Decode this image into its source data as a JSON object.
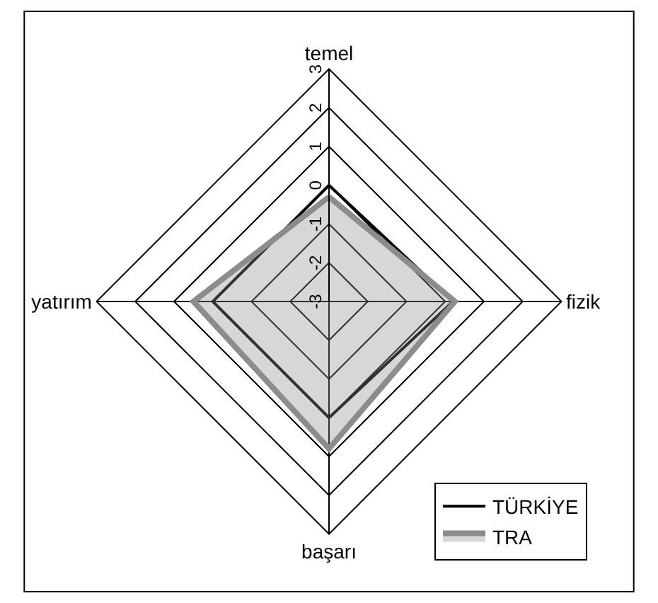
{
  "chart_data": {
    "type": "radar",
    "categories": [
      "temel",
      "fizik",
      "başarı",
      "yatırım"
    ],
    "series": [
      {
        "name": "TÜRKİYE",
        "color": "#000000",
        "values": [
          0,
          0.2,
          0,
          0
        ]
      },
      {
        "name": "TRA",
        "color": "#8c8c8c",
        "values": [
          -0.3,
          0.25,
          0.8,
          0.5
        ]
      }
    ],
    "ylim": [
      -3,
      3
    ],
    "yticks": [
      -3,
      -2,
      -1,
      0,
      1,
      2,
      3
    ],
    "grid": true,
    "legend": "bottom right",
    "marker": "none",
    "line_style": "solid"
  }
}
